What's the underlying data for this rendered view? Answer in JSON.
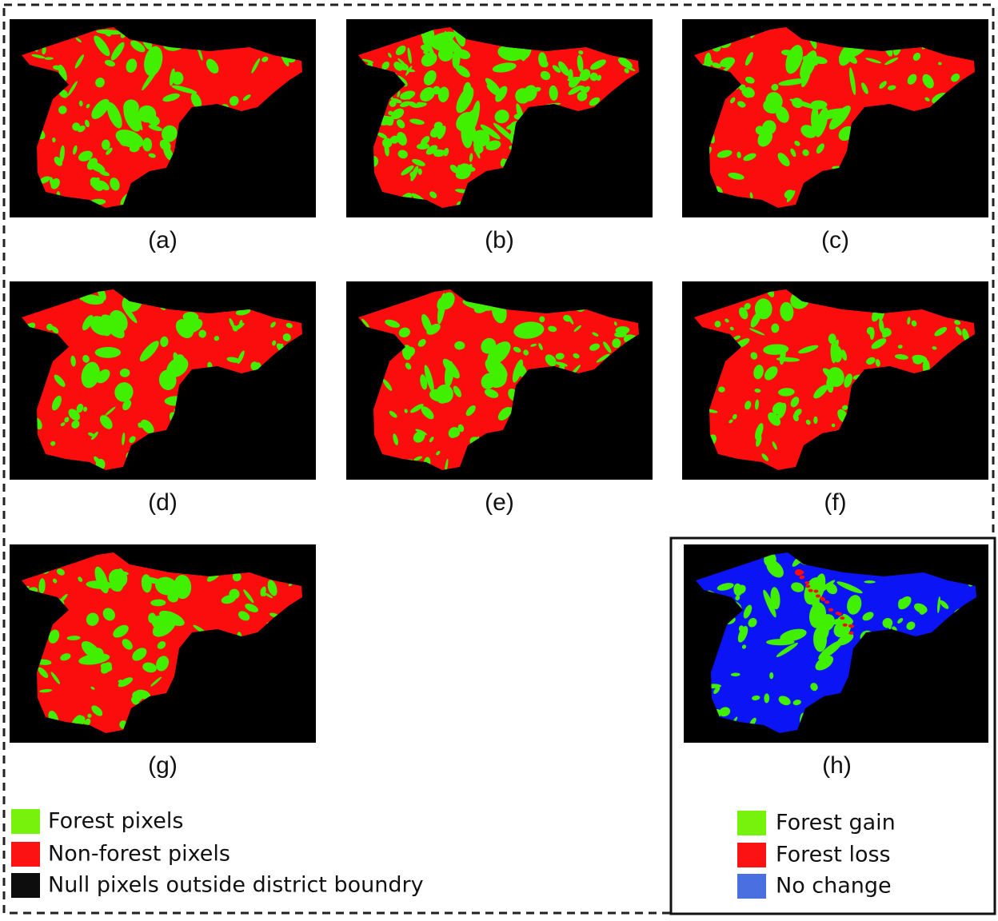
{
  "panels": [
    {
      "label": "(a)"
    },
    {
      "label": "(b)"
    },
    {
      "label": "(c)"
    },
    {
      "label": "(d)"
    },
    {
      "label": "(e)"
    },
    {
      "label": "(f)"
    },
    {
      "label": "(g)"
    },
    {
      "label": "(h)"
    }
  ],
  "legend": {
    "items": [
      {
        "label": "Forest pixels",
        "color": "#76f20c"
      },
      {
        "label": "Non-forest pixels",
        "color": "#fc1212"
      },
      {
        "label": "Null pixels outside district boundry",
        "color": "#0d0d0d"
      }
    ]
  },
  "change_legend": {
    "items": [
      {
        "label": "Forest gain",
        "color": "#76f20c"
      },
      {
        "label": "Forest loss",
        "color": "#fc1212"
      },
      {
        "label": "No change",
        "color": "#4a6fe0"
      }
    ]
  }
}
